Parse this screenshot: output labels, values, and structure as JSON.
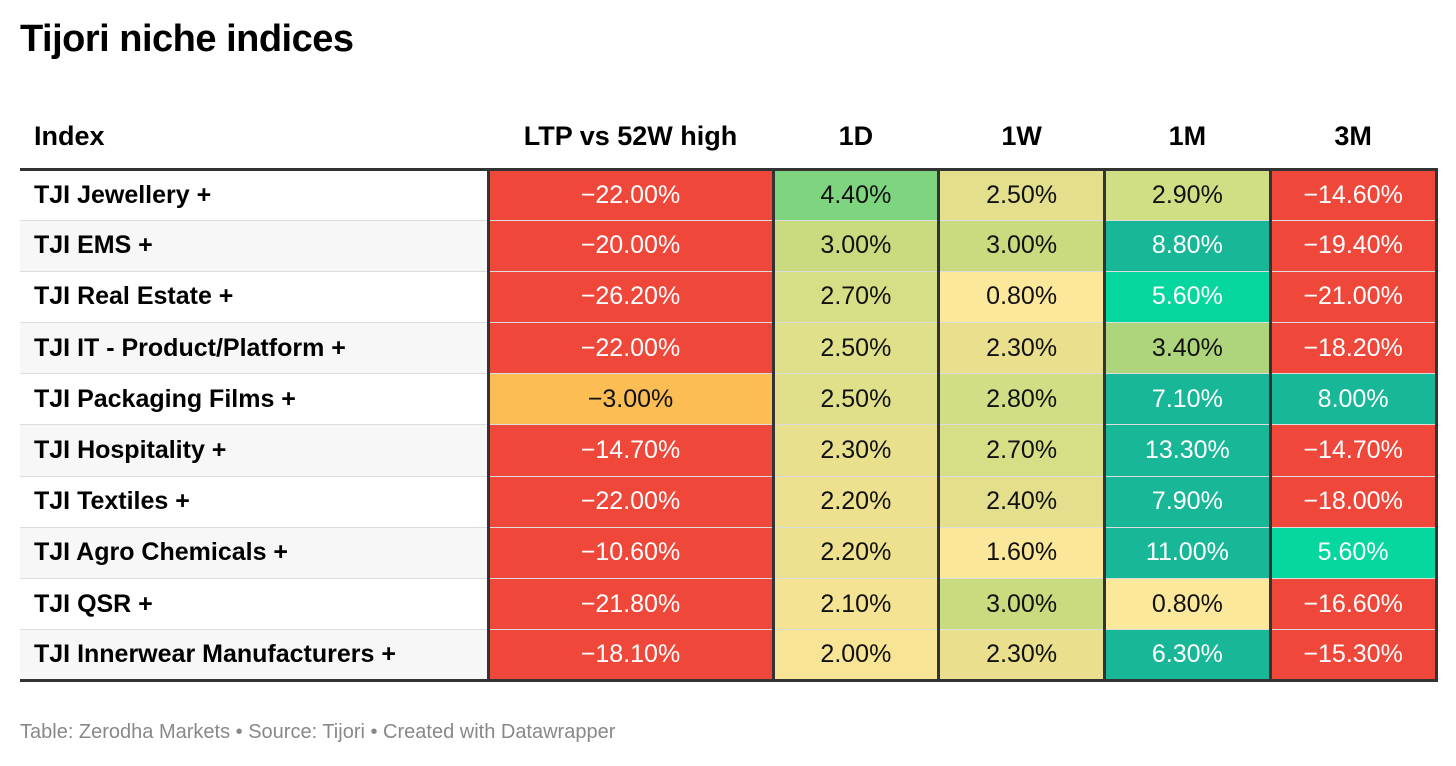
{
  "title": "Tijori niche indices",
  "footer": "Table: Zerodha Markets • Source: Tijori • Created with Datawrapper",
  "chart_data": {
    "type": "table",
    "title": "Tijori niche indices",
    "columns": [
      "Index",
      "LTP vs 52W high",
      "1D",
      "1W",
      "1M",
      "3M"
    ],
    "rows": [
      {
        "name": "TJI Jewellery +",
        "values": [
          "−22.00%",
          "4.40%",
          "2.50%",
          "2.90%",
          "−14.60%"
        ],
        "colors": [
          "#ef473a",
          "#7fd47f",
          "#e3df8c",
          "#d0de84",
          "#ef473a"
        ]
      },
      {
        "name": "TJI EMS +",
        "values": [
          "−20.00%",
          "3.00%",
          "3.00%",
          "8.80%",
          "−19.40%"
        ],
        "colors": [
          "#ef473a",
          "#c8db7e",
          "#c8db7e",
          "#17b797",
          "#ef473a"
        ]
      },
      {
        "name": "TJI Real Estate +",
        "values": [
          "−26.20%",
          "2.70%",
          "0.80%",
          "5.60%",
          "−21.00%"
        ],
        "colors": [
          "#ef473a",
          "#d6df86",
          "#fce89a",
          "#05d79f",
          "#ef473a"
        ]
      },
      {
        "name": "TJI IT - Product/Platform +",
        "values": [
          "−22.00%",
          "2.50%",
          "2.30%",
          "3.40%",
          "−18.20%"
        ],
        "colors": [
          "#ef473a",
          "#e0df8a",
          "#eadf8d",
          "#aed57b",
          "#ef473a"
        ]
      },
      {
        "name": "TJI Packaging Films +",
        "values": [
          "−3.00%",
          "2.50%",
          "2.80%",
          "7.10%",
          "8.00%"
        ],
        "colors": [
          "#fcbd55",
          "#e0df8a",
          "#d2de85",
          "#17b797",
          "#17b797"
        ]
      },
      {
        "name": "TJI Hospitality +",
        "values": [
          "−14.70%",
          "2.30%",
          "2.70%",
          "13.30%",
          "−14.70%"
        ],
        "colors": [
          "#ef473a",
          "#e8e08d",
          "#d6df86",
          "#17b797",
          "#ef473a"
        ]
      },
      {
        "name": "TJI Textiles +",
        "values": [
          "−22.00%",
          "2.20%",
          "2.40%",
          "7.90%",
          "−18.00%"
        ],
        "colors": [
          "#ef473a",
          "#ede08e",
          "#e3df8c",
          "#17b797",
          "#ef473a"
        ]
      },
      {
        "name": "TJI Agro Chemicals +",
        "values": [
          "−10.60%",
          "2.20%",
          "1.60%",
          "11.00%",
          "5.60%"
        ],
        "colors": [
          "#ef473a",
          "#ede08e",
          "#fbe79a",
          "#17b797",
          "#05d79f"
        ]
      },
      {
        "name": "TJI QSR +",
        "values": [
          "−21.80%",
          "2.10%",
          "3.00%",
          "0.80%",
          "−16.60%"
        ],
        "colors": [
          "#ef473a",
          "#f3e392",
          "#c8db7e",
          "#fce89a",
          "#ef473a"
        ]
      },
      {
        "name": "TJI Innerwear Manufacturers +",
        "values": [
          "−18.10%",
          "2.00%",
          "2.30%",
          "6.30%",
          "−15.30%"
        ],
        "colors": [
          "#ef473a",
          "#f7e595",
          "#eadf8d",
          "#17b797",
          "#ef473a"
        ]
      }
    ]
  }
}
